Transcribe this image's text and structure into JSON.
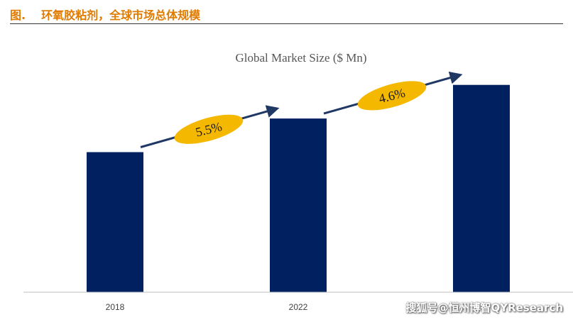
{
  "figure": {
    "number": "图.",
    "caption": "环氧胶粘剂，全球市场总体规模"
  },
  "watermark": "搜狐号@恒州博智QYResearch",
  "colors": {
    "bar": "#002060",
    "arrow": "#1f3864",
    "badge": "#f5b800",
    "header": "#e07b00"
  },
  "chart_data": {
    "type": "bar",
    "title": "Global Market Size ($ Mn)",
    "categories": [
      "2018",
      "2022",
      ""
    ],
    "values": [
      100,
      124,
      148
    ],
    "ylim": [
      0,
      160
    ],
    "grid": false,
    "legend": "none",
    "growth_annotations": [
      {
        "from": 0,
        "to": 1,
        "label": "5.5%"
      },
      {
        "from": 1,
        "to": 2,
        "label": "4.6%"
      }
    ]
  }
}
